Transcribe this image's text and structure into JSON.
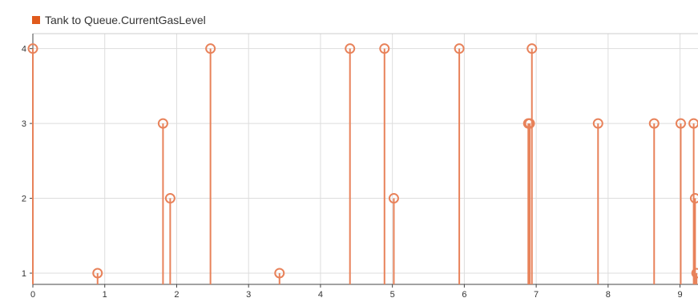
{
  "chart_data": {
    "type": "stem",
    "legend": {
      "placement": "top-left",
      "entries": [
        {
          "name": "Tank to Queue.CurrentGasLevel",
          "color": "#e05a1c"
        }
      ]
    },
    "series": [
      {
        "name": "Tank to Queue.CurrentGasLevel",
        "color": "#e8825a",
        "marker": "open-circle",
        "x": [
          0.0,
          0.9,
          1.81,
          1.91,
          2.47,
          3.43,
          4.41,
          4.89,
          5.02,
          5.93,
          6.89,
          6.91,
          6.94,
          7.86,
          8.64,
          9.01,
          9.19,
          9.21,
          9.23
        ],
        "y": [
          4,
          1,
          3,
          2,
          4,
          1,
          4,
          4,
          2,
          4,
          3,
          3,
          4,
          3,
          3,
          3,
          3,
          2,
          1
        ]
      }
    ],
    "xlim": [
      0,
      9.25
    ],
    "ylim": [
      0.85,
      4.2
    ],
    "xticks": [
      0,
      1,
      2,
      3,
      4,
      5,
      6,
      7,
      8,
      9
    ],
    "yticks": [
      1,
      2,
      3,
      4
    ],
    "grid": true
  }
}
